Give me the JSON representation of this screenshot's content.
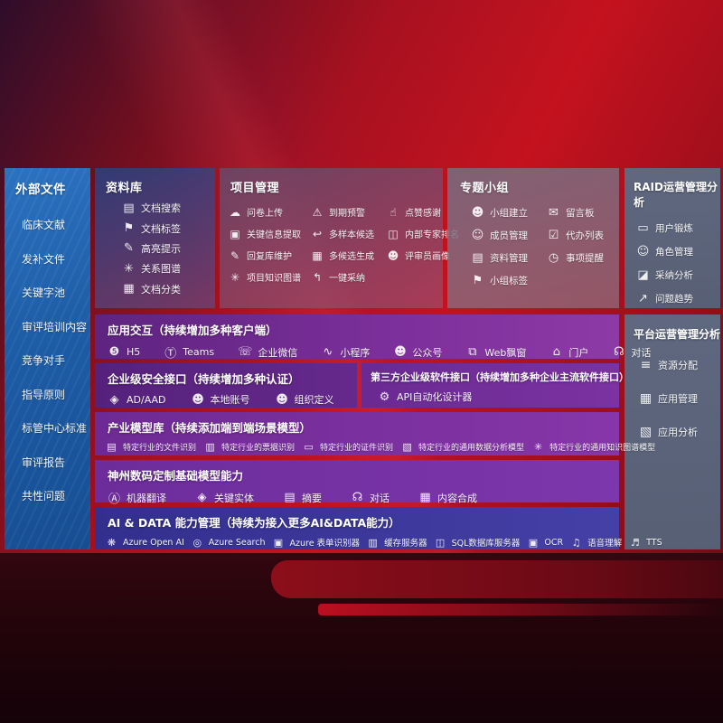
{
  "colors": {
    "background_red": "#c4121f",
    "background_dark": "#2e0d2a",
    "sidebar_blue": "#1d5ca6",
    "gray_panel": "#5d6b83",
    "purple_band": "#7b2f9a",
    "indigo_band": "#3a359a"
  },
  "sidebar": {
    "title": "外部文件",
    "items": [
      {
        "label": "临床文献"
      },
      {
        "label": "发补文件"
      },
      {
        "label": "关键字池"
      },
      {
        "label": "审评培训内容"
      },
      {
        "label": "竞争对手"
      },
      {
        "label": "指导原则"
      },
      {
        "label": "标管中心标准"
      },
      {
        "label": "审评报告"
      },
      {
        "label": "共性问题"
      }
    ]
  },
  "panels": {
    "library": {
      "title": "资料库",
      "items": [
        {
          "icon": "doc-search-icon",
          "label": "文档搜索"
        },
        {
          "icon": "tag-icon",
          "label": "文档标签"
        },
        {
          "icon": "highlight-icon",
          "label": "高亮提示"
        },
        {
          "icon": "relation-graph-icon",
          "label": "关系图谱"
        },
        {
          "icon": "doc-classify-icon",
          "label": "文档分类"
        }
      ]
    },
    "project": {
      "title": "项目管理",
      "items": [
        {
          "icon": "cloud-upload-icon",
          "label": "问卷上传"
        },
        {
          "icon": "alarm-icon",
          "label": "到期预警"
        },
        {
          "icon": "thumbs-up-icon",
          "label": "点赞感谢"
        },
        {
          "icon": "key-info-icon",
          "label": "关键信息提取"
        },
        {
          "icon": "reply-arrow-icon",
          "label": "多样本候选"
        },
        {
          "icon": "ranking-icon",
          "label": "内部专家排名"
        },
        {
          "icon": "pencil-icon",
          "label": "回复库维护"
        },
        {
          "icon": "multi-generate-icon",
          "label": "多候选生成"
        },
        {
          "icon": "person-icon",
          "label": "评审员画像"
        },
        {
          "icon": "knowledge-graph-icon",
          "label": "项目知识图谱"
        },
        {
          "icon": "adopt-arrow-icon",
          "label": "一键采纳"
        }
      ]
    },
    "group": {
      "title": "专题小组",
      "items": [
        {
          "icon": "team-icon",
          "label": "小组建立"
        },
        {
          "icon": "bbs-icon",
          "label": "留言板"
        },
        {
          "icon": "member-icon",
          "label": "成员管理"
        },
        {
          "icon": "todo-list-icon",
          "label": "代办列表"
        },
        {
          "icon": "archive-icon",
          "label": "资料管理"
        },
        {
          "icon": "bell-icon",
          "label": "事项提醒"
        },
        {
          "icon": "tag-icon",
          "label": "小组标签"
        }
      ]
    },
    "raid": {
      "title": "RAID运营管理分析",
      "items": [
        {
          "icon": "id-card-icon",
          "label": "用户锻炼"
        },
        {
          "icon": "roles-icon",
          "label": "角色管理"
        },
        {
          "icon": "qa-chat-icon",
          "label": "采纳分析"
        },
        {
          "icon": "trend-icon",
          "label": "问题趋势"
        }
      ]
    },
    "platform": {
      "title": "平台运营管理分析",
      "items": [
        {
          "icon": "resource-list-icon",
          "label": "资源分配"
        },
        {
          "icon": "apps-icon",
          "label": "应用管理"
        },
        {
          "icon": "app-analytics-icon",
          "label": "应用分析"
        }
      ]
    }
  },
  "rows": {
    "interaction": {
      "title": "应用交互（持续增加多种客户端）",
      "items": [
        {
          "icon": "h5-icon",
          "label": "H5"
        },
        {
          "icon": "teams-icon",
          "label": "Teams"
        },
        {
          "icon": "wechat-work-icon",
          "label": "企业微信"
        },
        {
          "icon": "miniprogram-icon",
          "label": "小程序"
        },
        {
          "icon": "official-account-icon",
          "label": "公众号"
        },
        {
          "icon": "web-popup-icon",
          "label": "Web飘窗"
        },
        {
          "icon": "portal-icon",
          "label": "门户"
        },
        {
          "icon": "dialog-icon",
          "label": "对话"
        }
      ]
    },
    "security": {
      "title": "企业级安全接口（持续增加多种认证）",
      "items": [
        {
          "icon": "shield-icon",
          "label": "AD/AAD"
        },
        {
          "icon": "local-account-icon",
          "label": "本地账号"
        },
        {
          "icon": "org-icon",
          "label": "组织定义"
        }
      ]
    },
    "thirdparty": {
      "title": "第三方企业级软件接口（持续增加多种企业主流软件接口）",
      "items": [
        {
          "icon": "api-gear-icon",
          "label": "API自动化设计器"
        }
      ]
    },
    "models": {
      "title": "产业模型库（持续添加端到端场景模型）",
      "items": [
        {
          "icon": "file-recognize-icon",
          "label": "特定行业的文件识别"
        },
        {
          "icon": "receipt-recognize-icon",
          "label": "特定行业的票据识别"
        },
        {
          "icon": "id-recognize-icon",
          "label": "特定行业的证件识别"
        },
        {
          "icon": "data-model-icon",
          "label": "特定行业的通用数据分析模型"
        },
        {
          "icon": "knowledge-model-icon",
          "label": "特定行业的通用知识图谱模型"
        }
      ]
    },
    "base": {
      "title": "神州数码定制基础模型能力",
      "items": [
        {
          "icon": "translate-icon",
          "label": "机器翻译"
        },
        {
          "icon": "entity-icon",
          "label": "关键实体"
        },
        {
          "icon": "summary-icon",
          "label": "摘要"
        },
        {
          "icon": "dialog-icon",
          "label": "对话"
        },
        {
          "icon": "compose-icon",
          "label": "内容合成"
        }
      ]
    },
    "aidata": {
      "title": "AI & DATA 能力管理（持续为接入更多AI&DATA能力）",
      "items": [
        {
          "icon": "openai-icon",
          "label": "Azure Open AI"
        },
        {
          "icon": "azure-search-icon",
          "label": "Azure Search"
        },
        {
          "icon": "form-recognizer-icon",
          "label": "Azure 表单识别器"
        },
        {
          "icon": "cache-server-icon",
          "label": "缓存服务器"
        },
        {
          "icon": "sql-db-icon",
          "label": "SQL数据库服务器"
        },
        {
          "icon": "ocr-icon",
          "label": "OCR"
        },
        {
          "icon": "speech-icon",
          "label": "语音理解"
        },
        {
          "icon": "tts-icon",
          "label": "TTS"
        }
      ]
    }
  },
  "icon_glyphs": {
    "doc-search-icon": "▤",
    "tag-icon": "⚑",
    "highlight-icon": "✎",
    "relation-graph-icon": "✳",
    "doc-classify-icon": "▦",
    "cloud-upload-icon": "☁",
    "alarm-icon": "⚠",
    "thumbs-up-icon": "☝",
    "key-info-icon": "▣",
    "reply-arrow-icon": "↩",
    "ranking-icon": "◫",
    "pencil-icon": "✎",
    "multi-generate-icon": "▦",
    "person-icon": "☻",
    "knowledge-graph-icon": "✳",
    "adopt-arrow-icon": "↰",
    "team-icon": "☻",
    "bbs-icon": "✉",
    "member-icon": "☺",
    "todo-list-icon": "☑",
    "archive-icon": "▤",
    "bell-icon": "◷",
    "id-card-icon": "▭",
    "roles-icon": "☺",
    "qa-chat-icon": "◪",
    "trend-icon": "↗",
    "resource-list-icon": "≡",
    "apps-icon": "▦",
    "app-analytics-icon": "▧",
    "h5-icon": "❺",
    "teams-icon": "Ⓣ",
    "wechat-work-icon": "☏",
    "miniprogram-icon": "∿",
    "official-account-icon": "☻",
    "web-popup-icon": "⧉",
    "portal-icon": "⌂",
    "dialog-icon": "☊",
    "shield-icon": "◈",
    "local-account-icon": "☻",
    "org-icon": "☻",
    "api-gear-icon": "⚙",
    "file-recognize-icon": "▤",
    "receipt-recognize-icon": "▥",
    "id-recognize-icon": "▭",
    "data-model-icon": "▧",
    "knowledge-model-icon": "✳",
    "translate-icon": "Ⓐ",
    "entity-icon": "◈",
    "summary-icon": "▤",
    "compose-icon": "▦",
    "openai-icon": "❋",
    "azure-search-icon": "◎",
    "form-recognizer-icon": "▣",
    "cache-server-icon": "▥",
    "sql-db-icon": "◫",
    "ocr-icon": "▣",
    "speech-icon": "♫",
    "tts-icon": "♬"
  }
}
